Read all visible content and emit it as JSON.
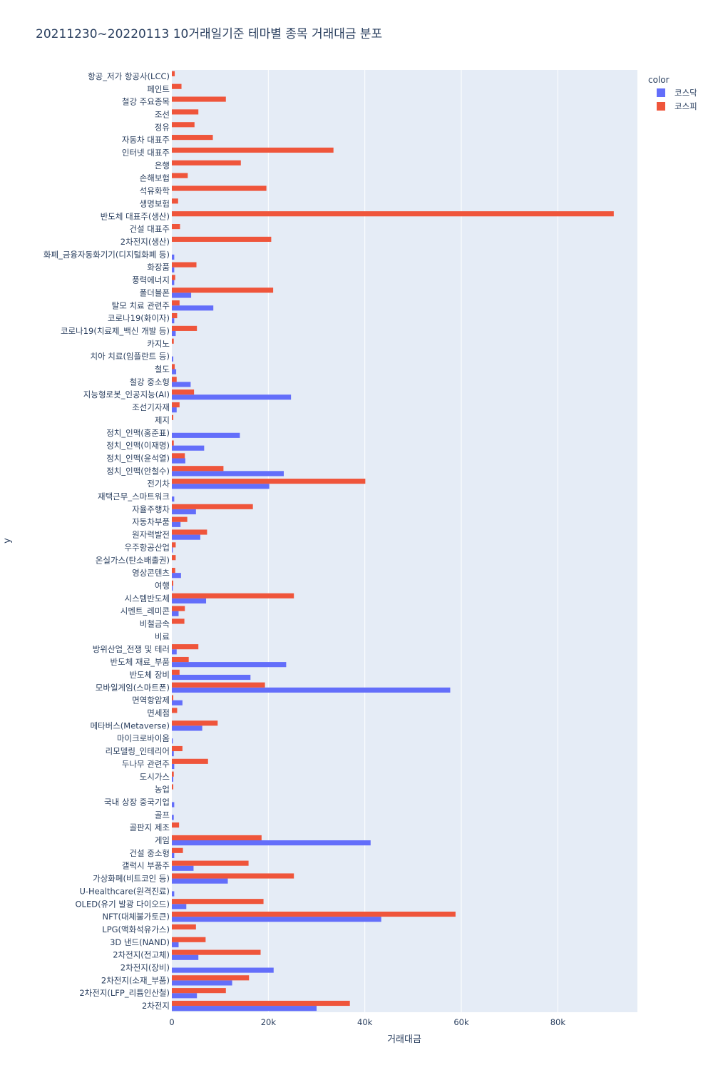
{
  "chart_data": {
    "type": "bar",
    "orientation": "horizontal",
    "barmode": "group",
    "title": "20211230~20220113 10거래일기준 테마별 종목 거래대금 분포",
    "xlabel": "거래대금",
    "ylabel": "y",
    "xlim": [
      0,
      96500
    ],
    "x_ticks": [
      0,
      20000,
      40000,
      60000,
      80000
    ],
    "x_tick_labels": [
      "0",
      "20k",
      "40k",
      "60k",
      "80k"
    ],
    "grid": true,
    "legend": {
      "title": "color",
      "position": "top-right"
    },
    "categories": [
      "항공_저가 항공사(LCC)",
      "페인트",
      "철강 주요종목",
      "조선",
      "정유",
      "자동차 대표주",
      "인터넷 대표주",
      "은행",
      "손해보험",
      "석유화학",
      "생명보험",
      "반도체 대표주(생산)",
      "건설 대표주",
      "2차전지(생산)",
      "화폐_금융자동화기기(디지털화폐 등)",
      "화장품",
      "풍력에너지",
      "폴더블폰",
      "탈모 치료 관련주",
      "코로나19(화이자)",
      "코로나19(치료제_백신 개발 등)",
      "카지노",
      "치아 치료(임플란트 등)",
      "철도",
      "철강 중소형",
      "지능형로봇_인공지능(AI)",
      "조선기자재",
      "제지",
      "정치_인맥(홍준표)",
      "정치_인맥(이재명)",
      "정치_인맥(윤석열)",
      "정치_인맥(안철수)",
      "전기차",
      "재택근무_스마트워크",
      "자율주행차",
      "자동차부품",
      "원자력발전",
      "우주항공산업",
      "온실가스(탄소배출권)",
      "영상콘텐츠",
      "여행",
      "시스템반도체",
      "시멘트_레미콘",
      "비철금속",
      "비료",
      "방위산업_전쟁 및 테러",
      "반도체 재료_부품",
      "반도체 장비",
      "모바일게임(스마트폰)",
      "면역항암제",
      "면세점",
      "메타버스(Metaverse)",
      "마이크로바이옴",
      "리모델링_인테리어",
      "두나무 관련주",
      "도시가스",
      "농업",
      "국내 상장 중국기업",
      "골프",
      "골판지 제조",
      "게임",
      "건설 중소형",
      "갤럭시 부품주",
      "가상화폐(비트코인 등)",
      "U-Healthcare(원격진료)",
      "OLED(유기 발광 다이오드)",
      "NFT(대체불가토큰)",
      "LPG(액화석유가스)",
      "3D 낸드(NAND)",
      "2차전지(전고체)",
      "2차전지(장비)",
      "2차전지(소재_부품)",
      "2차전지(LFP_리튬인산철)",
      "2차전지"
    ],
    "series": [
      {
        "name": "코스닥",
        "color": "#636efa",
        "values": [
          0,
          0,
          0,
          0,
          0,
          0,
          0,
          0,
          0,
          0,
          0,
          0,
          0,
          0,
          500,
          500,
          500,
          4000,
          8600,
          500,
          800,
          0,
          300,
          900,
          3900,
          24700,
          1000,
          0,
          14100,
          6700,
          2800,
          23200,
          20200,
          500,
          5000,
          1800,
          5900,
          200,
          0,
          1900,
          200,
          7100,
          1400,
          0,
          0,
          1000,
          23700,
          16300,
          57700,
          2200,
          0,
          6300,
          200,
          400,
          500,
          300,
          0,
          500,
          400,
          0,
          41200,
          500,
          4500,
          11600,
          500,
          3000,
          43400,
          0,
          1400,
          5500,
          21100,
          12500,
          5200,
          30000
        ]
      },
      {
        "name": "코스피",
        "color": "#ef553b",
        "values": [
          600,
          2000,
          11200,
          5500,
          4700,
          8500,
          33500,
          14300,
          3300,
          19600,
          1300,
          91600,
          1700,
          20600,
          0,
          5100,
          700,
          21000,
          1600,
          1100,
          5200,
          400,
          0,
          600,
          1000,
          4600,
          1600,
          300,
          0,
          400,
          2700,
          10700,
          40100,
          0,
          16800,
          3200,
          7300,
          800,
          800,
          700,
          300,
          25300,
          2700,
          2600,
          0,
          5500,
          3500,
          1600,
          19300,
          300,
          1100,
          9500,
          0,
          2200,
          7500,
          400,
          300,
          0,
          0,
          1500,
          18600,
          2300,
          15900,
          25300,
          0,
          19000,
          58800,
          5000,
          7000,
          18400,
          0,
          16000,
          11200,
          36900
        ]
      }
    ]
  }
}
